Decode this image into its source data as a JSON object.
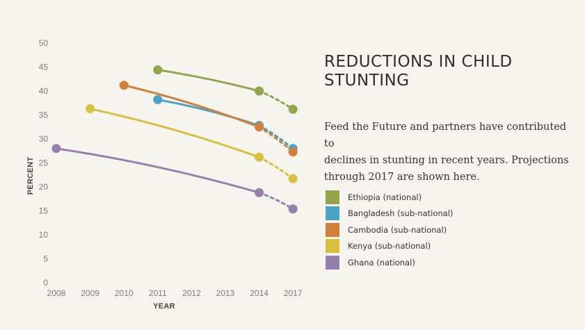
{
  "chart_data": {
    "type": "line",
    "xlabel": "YEAR",
    "ylabel": "PERCENT",
    "ylim": [
      0,
      50
    ],
    "yticks": [
      "0",
      "5",
      "10",
      "15",
      "20",
      "25",
      "30",
      "35",
      "40",
      "45",
      "50"
    ],
    "x_categories": [
      "2008",
      "2009",
      "2010",
      "2011",
      "2012",
      "2013",
      "2014",
      "2017"
    ],
    "grid": false,
    "legend_placement": "right",
    "series": [
      {
        "name": "Ethiopia (national)",
        "color": "#91a64b",
        "points": [
          {
            "x": "2011",
            "y": 44.4
          },
          {
            "x": "2014",
            "y": 40.0
          }
        ],
        "projection": {
          "x": "2017",
          "y": 36.2
        }
      },
      {
        "name": "Bangladesh (sub-national)",
        "color": "#4aa3c4",
        "points": [
          {
            "x": "2011",
            "y": 38.2
          },
          {
            "x": "2014",
            "y": 32.8
          }
        ],
        "projection": {
          "x": "2017",
          "y": 28.0
        }
      },
      {
        "name": "Cambodia (sub-national)",
        "color": "#d27f3a",
        "points": [
          {
            "x": "2010",
            "y": 41.2
          },
          {
            "x": "2014",
            "y": 32.5
          }
        ],
        "projection": {
          "x": "2017",
          "y": 27.3
        }
      },
      {
        "name": "Kenya (sub-national)",
        "color": "#d8bf3c",
        "points": [
          {
            "x": "2009",
            "y": 36.3
          },
          {
            "x": "2014",
            "y": 26.2
          }
        ],
        "projection": {
          "x": "2017",
          "y": 21.7
        }
      },
      {
        "name": "Ghana (national)",
        "color": "#9580ac",
        "points": [
          {
            "x": "2008",
            "y": 28.0
          },
          {
            "x": "2014",
            "y": 18.8
          }
        ],
        "projection": {
          "x": "2017",
          "y": 15.4
        }
      }
    ]
  },
  "panel": {
    "title_line1": "REDUCTIONS IN CHILD",
    "title_line2": "STUNTING",
    "desc_line1": "Feed the Future and partners have contributed to",
    "desc_line2": "declines in stunting in recent years. Projections",
    "desc_line3": "through 2017 are shown here."
  }
}
